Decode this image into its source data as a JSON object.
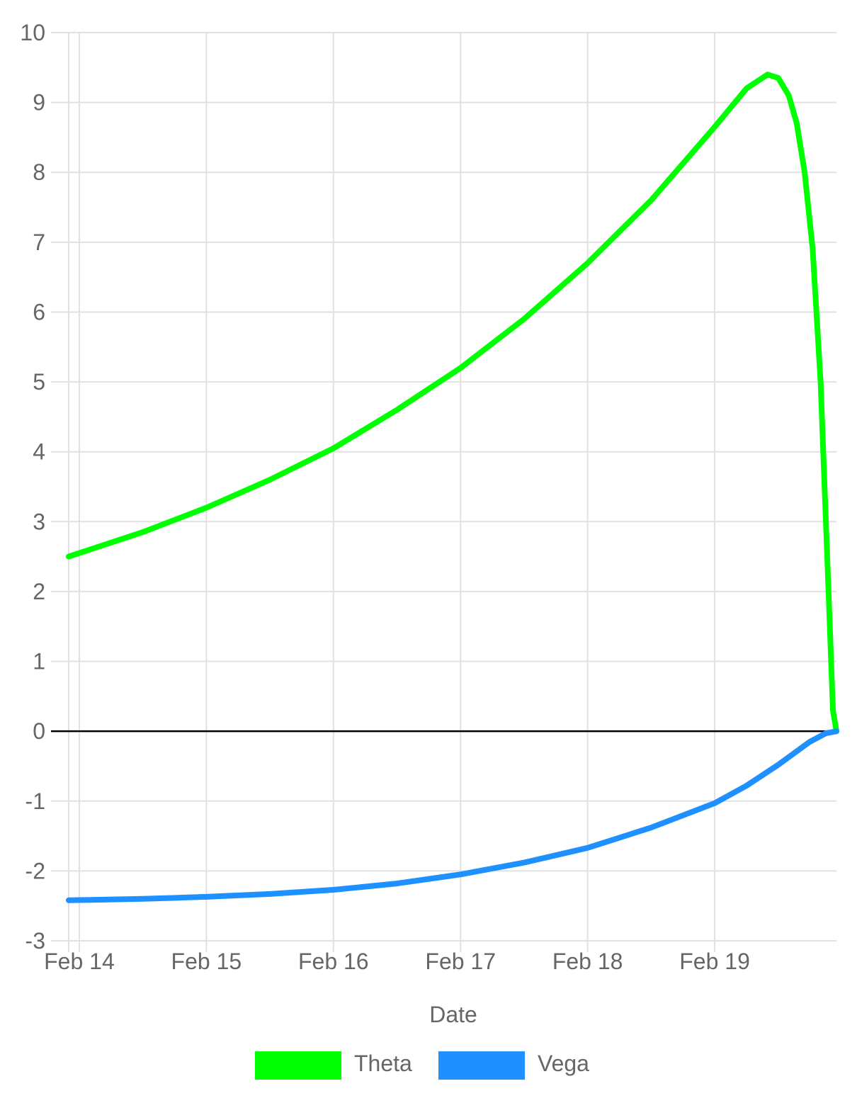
{
  "chart_data": {
    "type": "line",
    "title": "",
    "xlabel": "Date",
    "ylabel": "",
    "ylim": [
      -3,
      10
    ],
    "xlim": [
      "2021-02-13T22:00",
      "2021-02-19T23:00"
    ],
    "grid": true,
    "legend_position": "bottom",
    "y_ticks": [
      "10",
      "9",
      "8",
      "7",
      "6",
      "5",
      "4",
      "3",
      "2",
      "1",
      "0",
      "-1",
      "-2",
      "-3"
    ],
    "x_ticks": [
      {
        "label": "Feb 14",
        "x": "2021-02-14T00:00"
      },
      {
        "label": "Feb 15",
        "x": "2021-02-15T00:00"
      },
      {
        "label": "Feb 16",
        "x": "2021-02-16T00:00"
      },
      {
        "label": "Feb 17",
        "x": "2021-02-17T00:00"
      },
      {
        "label": "Feb 18",
        "x": "2021-02-18T00:00"
      },
      {
        "label": "Feb 19",
        "x": "2021-02-19T00:00"
      }
    ],
    "series": [
      {
        "name": "Theta",
        "color": "#00ff00",
        "points": [
          {
            "x": "2021-02-13T22:00",
            "y": 2.5
          },
          {
            "x": "2021-02-14T12:00",
            "y": 2.85
          },
          {
            "x": "2021-02-15T00:00",
            "y": 3.2
          },
          {
            "x": "2021-02-15T12:00",
            "y": 3.6
          },
          {
            "x": "2021-02-16T00:00",
            "y": 4.05
          },
          {
            "x": "2021-02-16T12:00",
            "y": 4.6
          },
          {
            "x": "2021-02-17T00:00",
            "y": 5.2
          },
          {
            "x": "2021-02-17T12:00",
            "y": 5.9
          },
          {
            "x": "2021-02-18T00:00",
            "y": 6.7
          },
          {
            "x": "2021-02-18T12:00",
            "y": 7.6
          },
          {
            "x": "2021-02-19T00:00",
            "y": 8.65
          },
          {
            "x": "2021-02-19T06:00",
            "y": 9.2
          },
          {
            "x": "2021-02-19T10:00",
            "y": 9.4
          },
          {
            "x": "2021-02-19T12:00",
            "y": 9.35
          },
          {
            "x": "2021-02-19T14:00",
            "y": 9.1
          },
          {
            "x": "2021-02-19T15:30",
            "y": 8.7
          },
          {
            "x": "2021-02-19T17:00",
            "y": 8.0
          },
          {
            "x": "2021-02-19T18:30",
            "y": 6.9
          },
          {
            "x": "2021-02-19T20:00",
            "y": 5.0
          },
          {
            "x": "2021-02-19T21:30",
            "y": 2.0
          },
          {
            "x": "2021-02-19T22:20",
            "y": 0.3
          },
          {
            "x": "2021-02-19T23:00",
            "y": 0.0
          }
        ]
      },
      {
        "name": "Vega",
        "color": "#1e90ff",
        "points": [
          {
            "x": "2021-02-13T22:00",
            "y": -2.42
          },
          {
            "x": "2021-02-14T12:00",
            "y": -2.4
          },
          {
            "x": "2021-02-15T00:00",
            "y": -2.37
          },
          {
            "x": "2021-02-15T12:00",
            "y": -2.33
          },
          {
            "x": "2021-02-16T00:00",
            "y": -2.27
          },
          {
            "x": "2021-02-16T12:00",
            "y": -2.18
          },
          {
            "x": "2021-02-17T00:00",
            "y": -2.05
          },
          {
            "x": "2021-02-17T12:00",
            "y": -1.88
          },
          {
            "x": "2021-02-18T00:00",
            "y": -1.67
          },
          {
            "x": "2021-02-18T12:00",
            "y": -1.38
          },
          {
            "x": "2021-02-19T00:00",
            "y": -1.03
          },
          {
            "x": "2021-02-19T06:00",
            "y": -0.78
          },
          {
            "x": "2021-02-19T12:00",
            "y": -0.48
          },
          {
            "x": "2021-02-19T18:00",
            "y": -0.15
          },
          {
            "x": "2021-02-19T21:00",
            "y": -0.03
          },
          {
            "x": "2021-02-19T23:00",
            "y": 0.0
          }
        ]
      }
    ]
  }
}
